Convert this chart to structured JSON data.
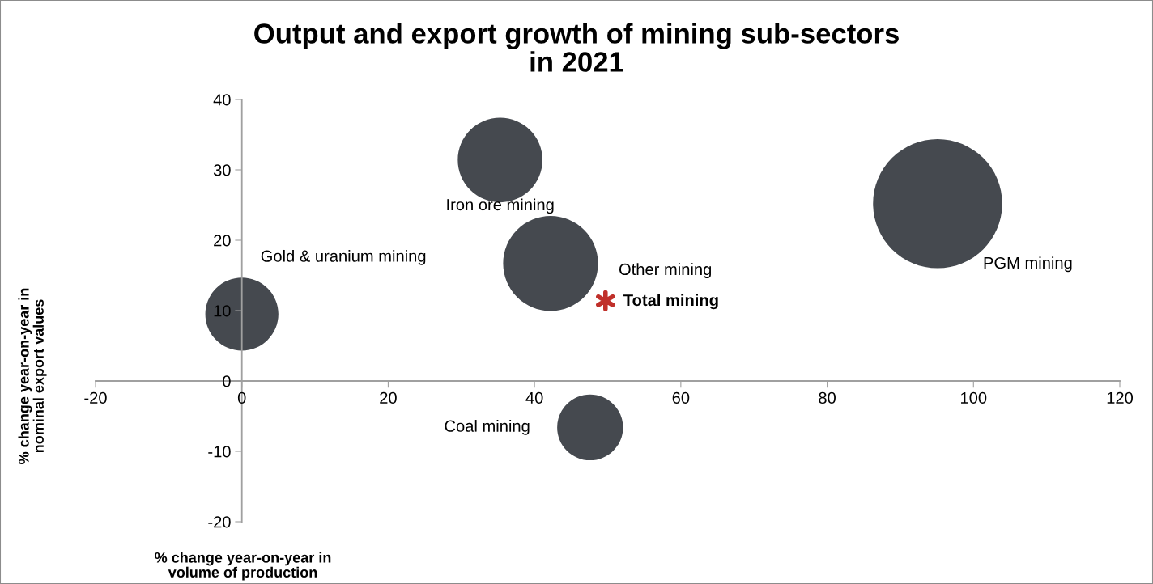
{
  "chart_data": {
    "type": "bubble",
    "title": "Output and export growth of mining sub-sectors\nin 2021",
    "xlabel": "% change year-on-year in\nvolume of production",
    "ylabel": "% change year-on-year in\nnominal export values",
    "xlim": [
      -20,
      120
    ],
    "xticks": [
      -20,
      0,
      20,
      40,
      60,
      80,
      100,
      120
    ],
    "ylim": [
      -20,
      40
    ],
    "yticks": [
      -20,
      -10,
      0,
      10,
      20,
      30,
      40
    ],
    "grid": false,
    "legend": false,
    "series": [
      {
        "name": "Gold & uranium mining",
        "color": "#45494f",
        "x": [
          0
        ],
        "values": [
          9.5
        ],
        "sizes": [
          0.32
        ]
      },
      {
        "name": "Iron ore mining",
        "color": "#45494f",
        "x": [
          35.3
        ],
        "values": [
          31.4
        ],
        "sizes": [
          0.43
        ]
      },
      {
        "name": "Other mining",
        "color": "#45494f",
        "x": [
          42.2
        ],
        "values": [
          16.7
        ],
        "sizes": [
          0.54
        ]
      },
      {
        "name": "PGM mining",
        "color": "#45494f",
        "x": [
          95.1
        ],
        "values": [
          25.2
        ],
        "sizes": [
          1
        ]
      },
      {
        "name": "Coal mining",
        "color": "#45494f",
        "x": [
          47.6
        ],
        "values": [
          -6.6
        ],
        "sizes": [
          0.26
        ]
      },
      {
        "name": "Total mining",
        "type": "scatter",
        "marker": "cross",
        "color": "#c0302a",
        "x": [
          49.7
        ],
        "values": [
          11.4
        ]
      }
    ]
  }
}
